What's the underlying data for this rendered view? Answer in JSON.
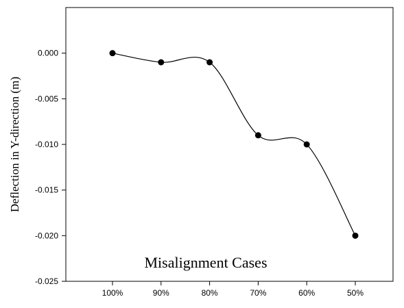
{
  "chart_data": {
    "type": "line",
    "categories": [
      "100%",
      "90%",
      "80%",
      "70%",
      "60%",
      "50%"
    ],
    "values": [
      0.0,
      -0.001,
      -0.001,
      -0.009,
      -0.01,
      -0.02
    ],
    "xlabel": "Misalignment Cases",
    "ylabel": "Deflection in Y-direction (m)",
    "ylim": [
      -0.025,
      0.005
    ],
    "yticks": [
      0.0,
      -0.005,
      -0.01,
      -0.015,
      -0.02,
      -0.025
    ],
    "ytick_labels": [
      "0.000",
      "-0.005",
      "-0.010",
      "-0.015",
      "-0.020",
      "-0.025"
    ],
    "grid": false,
    "smooth": true,
    "marker_color": "#000000",
    "line_color": "#000000"
  }
}
